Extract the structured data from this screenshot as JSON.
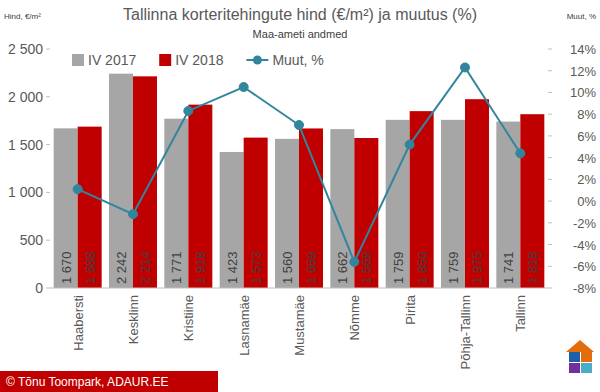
{
  "chart_data": {
    "type": "bar",
    "title": "Tallinna korteritehingute hind (€/m²) ja muutus (%)",
    "subtitle": "Maa-ameti andmed",
    "y_label": "Hind, €/m²",
    "y2_label": "Muut, %",
    "annotations": [
      "© Tõnu Toompark, ADAUR.EE"
    ],
    "categories": [
      "Haabersti",
      "Kesklinn",
      "Kristiine",
      "Lasnamäe",
      "Mustamäe",
      "Nõmme",
      "Pirita",
      "Põhja-Tallinn",
      "Tallinn"
    ],
    "series": [
      {
        "name": "IV 2017",
        "type": "bar",
        "color": "#a6a6a6",
        "values": [
          1670,
          2242,
          1771,
          1423,
          1560,
          1662,
          1759,
          1759,
          1741
        ],
        "value_labels": [
          "1 670",
          "2 242",
          "1 771",
          "1 423",
          "1 560",
          "1 662",
          "1 759",
          "1 759",
          "1 741"
        ]
      },
      {
        "name": "IV 2018",
        "type": "bar",
        "color": "#c00000",
        "values": [
          1688,
          2214,
          1918,
          1573,
          1669,
          1569,
          1850,
          1975,
          1818
        ],
        "value_labels": [
          "1 688",
          "2 214",
          "1 918",
          "1 573",
          "1 669",
          "1 569",
          "1 850",
          "1 975",
          "1 818"
        ]
      },
      {
        "name": "Muut, %",
        "type": "line",
        "color": "#31859c",
        "marker": "circle",
        "axis": "y2",
        "values": [
          1.1,
          -1.2,
          8.3,
          10.5,
          7.0,
          -5.6,
          5.2,
          12.3,
          4.4
        ]
      }
    ],
    "ylim": [
      0,
      2500
    ],
    "yticks": [
      0,
      500,
      {
        "value": 1000,
        "label": "1 000"
      },
      {
        "value": 1500,
        "label": "1 500"
      },
      {
        "value": 2000,
        "label": "2 000"
      },
      {
        "value": 2500,
        "label": "2 500"
      }
    ],
    "y2lim": [
      -8,
      14
    ],
    "y2ticks": [
      {
        "value": -8,
        "label": "-8%"
      },
      {
        "value": -6,
        "label": "-6%"
      },
      {
        "value": -4,
        "label": "-4%"
      },
      {
        "value": -2,
        "label": "-2%"
      },
      {
        "value": 0,
        "label": "0%"
      },
      {
        "value": 2,
        "label": "2%"
      },
      {
        "value": 4,
        "label": "4%"
      },
      {
        "value": 6,
        "label": "6%"
      },
      {
        "value": 8,
        "label": "8%"
      },
      {
        "value": 10,
        "label": "10%"
      },
      {
        "value": 12,
        "label": "12%"
      },
      {
        "value": 14,
        "label": "14%"
      }
    ],
    "grid": false,
    "legend": "top",
    "data_labels": true
  }
}
